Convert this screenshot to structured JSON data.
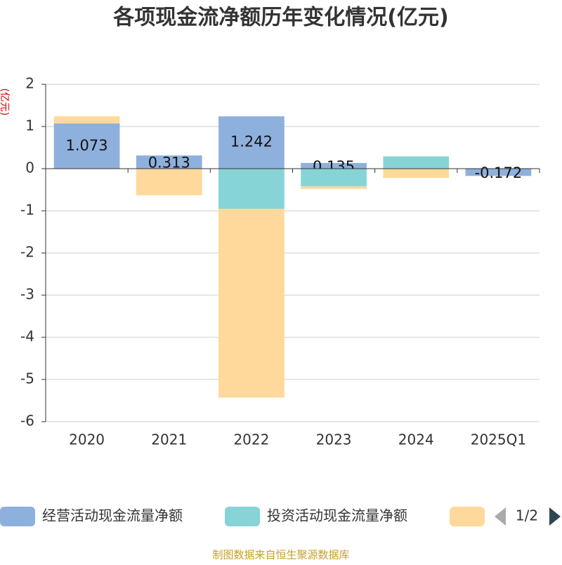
{
  "chart_data": {
    "type": "bar",
    "stacked": true,
    "title": "各项现金流净额历年变化情况(亿元)",
    "y_axis_label": "(亿元)",
    "source": "制图数据来自恒生聚源数据库",
    "legend_page": "1/2",
    "categories": [
      "2020",
      "2021",
      "2022",
      "2023",
      "2024",
      "2025Q1"
    ],
    "series": [
      {
        "name": "经营活动现金流量净额",
        "color": "#8eb0dc",
        "values": [
          1.073,
          0.313,
          1.242,
          0.135,
          0.01,
          -0.172
        ],
        "value_labels": [
          "1.073",
          "0.313",
          "1.242",
          "0.135",
          null,
          "-0.172"
        ]
      },
      {
        "name": "投资活动现金流量净额",
        "color": "#86d4d6",
        "values": [
          0,
          0,
          -0.95,
          -0.42,
          0.28,
          0
        ]
      },
      {
        "color": "#fed99b",
        "values": [
          0.17,
          -0.63,
          -4.48,
          -0.06,
          -0.22,
          0
        ]
      }
    ],
    "ylim": [
      -6,
      2
    ],
    "yticks": [
      -6,
      -5,
      -4,
      -3,
      -2,
      -1,
      0,
      1,
      2
    ],
    "grid": true
  }
}
